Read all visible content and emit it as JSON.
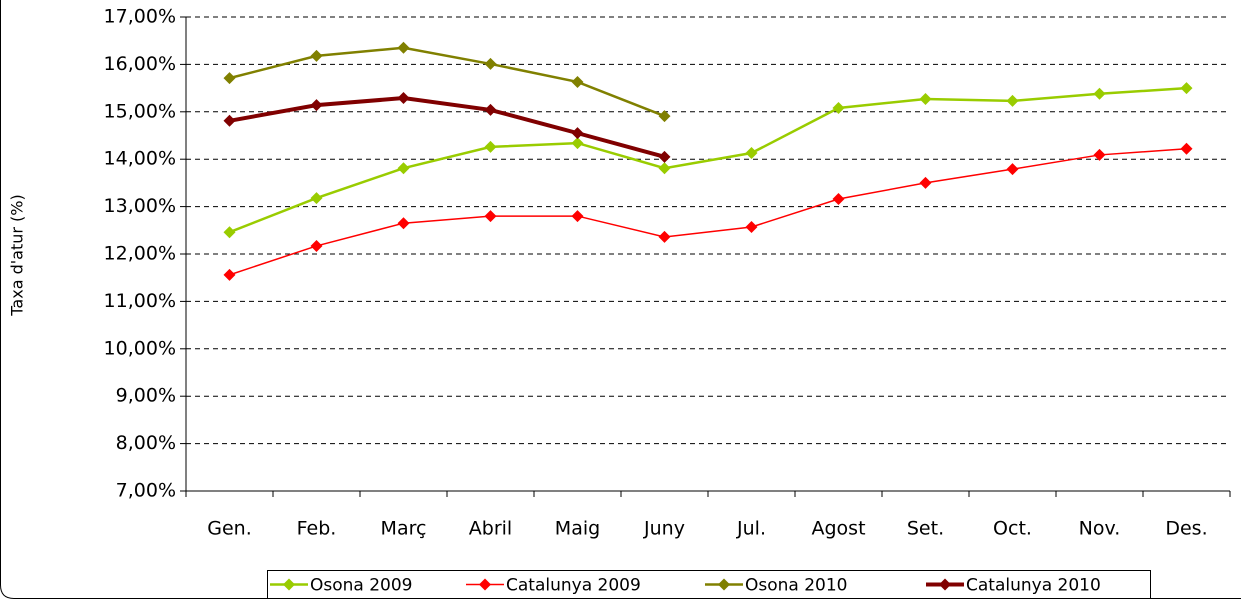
{
  "chart_data": {
    "type": "line",
    "y_label": "Taxa d'atur (%)",
    "categories": [
      "Gen.",
      "Feb.",
      "Març",
      "Abril",
      "Maig",
      "Juny",
      "Jul.",
      "Agost",
      "Set.",
      "Oct.",
      "Nov.",
      "Des."
    ],
    "series": [
      {
        "name": "Osona 2009",
        "color": "#99cc00",
        "values": [
          12.46,
          13.18,
          13.81,
          14.26,
          14.34,
          13.81,
          14.13,
          15.08,
          15.27,
          15.23,
          15.38,
          15.5
        ]
      },
      {
        "name": "Catalunya 2009",
        "color": "#ff0000",
        "values": [
          11.56,
          12.17,
          12.65,
          12.8,
          12.8,
          12.36,
          12.57,
          13.16,
          13.5,
          13.79,
          14.09,
          14.22
        ]
      },
      {
        "name": "Osona 2010",
        "color": "#808000",
        "values": [
          15.71,
          16.18,
          16.35,
          16.01,
          15.63,
          14.91,
          null,
          null,
          null,
          null,
          null,
          null
        ]
      },
      {
        "name": "Catalunya 2010",
        "color": "#800000",
        "values": [
          14.81,
          15.14,
          15.29,
          15.04,
          14.55,
          14.05,
          null,
          null,
          null,
          null,
          null,
          null
        ]
      }
    ],
    "ylim": [
      7,
      17
    ],
    "yticks": [
      {
        "value": 7,
        "label": "7,00%"
      },
      {
        "value": 8,
        "label": "8,00%"
      },
      {
        "value": 9,
        "label": "9,00%"
      },
      {
        "value": 10,
        "label": "10,00%"
      },
      {
        "value": 11,
        "label": "11,00%"
      },
      {
        "value": 12,
        "label": "12,00%"
      },
      {
        "value": 13,
        "label": "13,00%"
      },
      {
        "value": 14,
        "label": "14,00%"
      },
      {
        "value": 15,
        "label": "15,00%"
      },
      {
        "value": 16,
        "label": "16,00%"
      },
      {
        "value": 17,
        "label": "17,00%"
      }
    ],
    "grid": true,
    "legend": "bottom"
  }
}
